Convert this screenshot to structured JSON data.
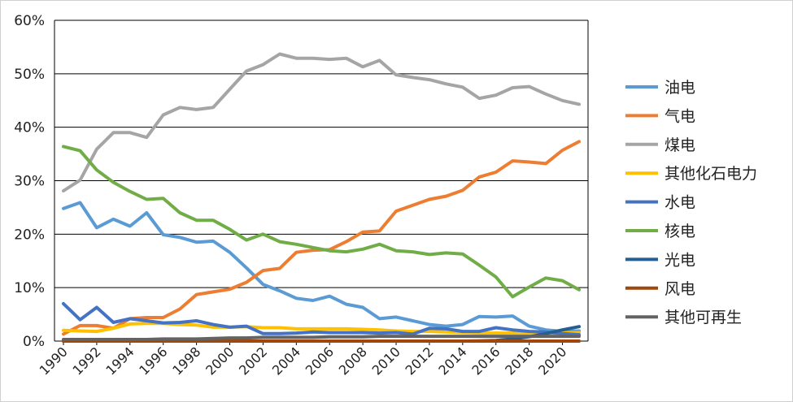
{
  "chart_data": {
    "type": "line",
    "title": "",
    "xlabel": "",
    "ylabel": "",
    "ylim": [
      0,
      60
    ],
    "yticks": [
      "0%",
      "10%",
      "20%",
      "30%",
      "40%",
      "50%",
      "60%"
    ],
    "xticks": [
      "1990",
      "1992",
      "1994",
      "1996",
      "1998",
      "2000",
      "2002",
      "2004",
      "2006",
      "2008",
      "2010",
      "2012",
      "2014",
      "2016",
      "2018",
      "2020"
    ],
    "grid": "horizontal",
    "legend_position": "right",
    "x": [
      1990,
      1991,
      1992,
      1993,
      1994,
      1995,
      1996,
      1997,
      1998,
      1999,
      2000,
      2001,
      2002,
      2003,
      2004,
      2005,
      2006,
      2007,
      2008,
      2009,
      2010,
      2011,
      2012,
      2013,
      2014,
      2015,
      2016,
      2017,
      2018,
      2019,
      2020,
      2021
    ],
    "series": [
      {
        "name": "油电",
        "color": "#5b9bd5",
        "values": [
          24.8,
          25.9,
          21.2,
          22.8,
          21.5,
          24.0,
          19.9,
          19.4,
          18.5,
          18.7,
          16.6,
          13.7,
          10.6,
          9.4,
          8.0,
          7.6,
          8.4,
          6.9,
          6.3,
          4.2,
          4.5,
          3.8,
          3.1,
          2.8,
          3.1,
          4.6,
          4.5,
          4.7,
          2.8,
          2.1,
          1.8,
          1.9
        ]
      },
      {
        "name": "气电",
        "color": "#ed7d31",
        "values": [
          1.3,
          2.9,
          2.9,
          2.4,
          4.2,
          4.4,
          4.4,
          6.0,
          8.7,
          9.2,
          9.7,
          11.0,
          13.2,
          13.6,
          16.6,
          17.0,
          17.1,
          18.6,
          20.4,
          20.6,
          24.3,
          25.4,
          26.5,
          27.1,
          28.2,
          30.7,
          31.6,
          33.7,
          33.5,
          33.2,
          35.7,
          37.3
        ]
      },
      {
        "name": "煤电",
        "color": "#a5a5a5",
        "values": [
          28.1,
          30.1,
          35.9,
          39.0,
          39.0,
          38.1,
          42.3,
          43.7,
          43.3,
          43.7,
          47.1,
          50.5,
          51.7,
          53.7,
          52.9,
          52.9,
          52.7,
          52.9,
          51.3,
          52.5,
          49.8,
          49.3,
          48.9,
          48.1,
          47.5,
          45.4,
          46.0,
          47.4,
          47.6,
          46.2,
          45.0,
          44.3
        ]
      },
      {
        "name": "其他化石电力",
        "color": "#ffc000",
        "values": [
          2.0,
          1.9,
          1.8,
          2.4,
          3.2,
          3.3,
          3.3,
          3.1,
          3.0,
          2.6,
          2.6,
          2.7,
          2.5,
          2.5,
          2.3,
          2.3,
          2.3,
          2.3,
          2.2,
          2.1,
          1.9,
          1.8,
          1.8,
          1.7,
          1.6,
          1.5,
          1.5,
          1.5,
          1.5,
          1.5,
          1.5,
          1.6
        ]
      },
      {
        "name": "水电",
        "color": "#4472c4",
        "values": [
          7.0,
          4.0,
          6.3,
          3.5,
          4.2,
          3.8,
          3.4,
          3.5,
          3.8,
          3.1,
          2.6,
          2.8,
          1.4,
          1.4,
          1.5,
          1.7,
          1.6,
          1.6,
          1.6,
          1.5,
          1.6,
          1.3,
          2.4,
          2.3,
          1.8,
          1.8,
          2.5,
          2.1,
          1.8,
          1.7,
          1.4,
          1.2
        ]
      },
      {
        "name": "核电",
        "color": "#70ad47",
        "values": [
          36.4,
          35.6,
          32.0,
          29.7,
          28.0,
          26.5,
          26.7,
          24.0,
          22.6,
          22.6,
          20.9,
          18.9,
          20.0,
          18.6,
          18.1,
          17.5,
          16.9,
          16.7,
          17.2,
          18.1,
          16.9,
          16.7,
          16.2,
          16.5,
          16.3,
          14.2,
          12.0,
          8.3,
          10.1,
          11.8,
          11.3,
          9.6
        ]
      },
      {
        "name": "光电",
        "color": "#255e91",
        "values": [
          0,
          0,
          0,
          0,
          0,
          0,
          0,
          0,
          0,
          0,
          0,
          0,
          0,
          0,
          0,
          0,
          0,
          0,
          0,
          0,
          0,
          0,
          0,
          0,
          0,
          0.05,
          0.1,
          0.4,
          0.8,
          1.4,
          2.1,
          2.7
        ]
      },
      {
        "name": "风电",
        "color": "#9e480e",
        "values": [
          0,
          0,
          0,
          0,
          0,
          0,
          0,
          0,
          0,
          0,
          0,
          0,
          0,
          0,
          0,
          0,
          0,
          0,
          0,
          0,
          0,
          0,
          0,
          0,
          0,
          0,
          0,
          0,
          0,
          0,
          0,
          0
        ]
      },
      {
        "name": "其他可再生",
        "color": "#636363",
        "values": [
          0.3,
          0.3,
          0.3,
          0.3,
          0.3,
          0.3,
          0.4,
          0.4,
          0.4,
          0.5,
          0.6,
          0.6,
          0.7,
          0.7,
          0.7,
          0.7,
          0.8,
          0.8,
          0.8,
          0.9,
          0.9,
          0.9,
          0.9,
          0.9,
          0.9,
          0.9,
          0.9,
          0.9,
          0.9,
          0.9,
          0.9,
          0.9
        ]
      }
    ]
  }
}
